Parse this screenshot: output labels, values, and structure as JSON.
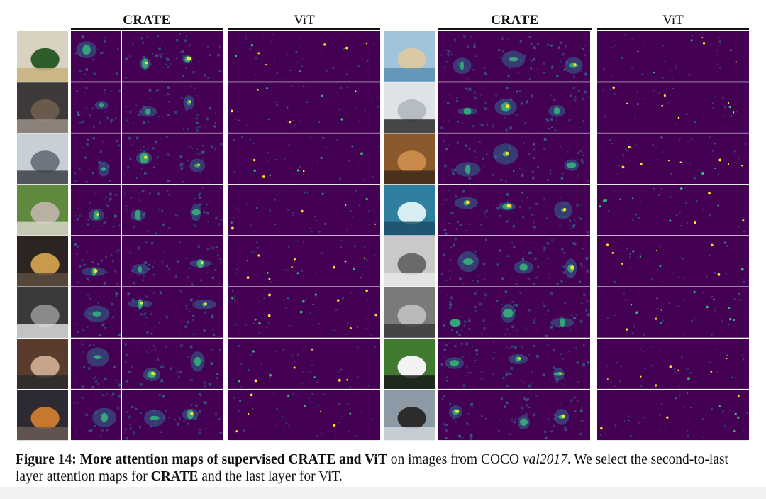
{
  "figure": {
    "headers": {
      "left_crate": "CRATE",
      "left_vit": "ViT",
      "right_crate": "CRATE",
      "right_vit": "ViT"
    },
    "rows_per_side": 8,
    "maps_per_group": 3,
    "colors": {
      "map_background": "#440154",
      "map_mid": "#31688e",
      "map_high": "#35b779",
      "map_peak": "#fde725"
    },
    "left_thumbnails": [
      {
        "name": "food-bowl-thumbnail",
        "colors": [
          "#d9d2c1",
          "#2f5d2a",
          "#c8b27c"
        ]
      },
      {
        "name": "kitchen-thumbnail",
        "colors": [
          "#3e3a3a",
          "#6a5a4c",
          "#9a8f86"
        ]
      },
      {
        "name": "parking-garage-thumbnail",
        "colors": [
          "#c9cfd6",
          "#6d7680",
          "#3a3f45"
        ]
      },
      {
        "name": "baseball-thumbnail",
        "colors": [
          "#5f8a3e",
          "#b8b0a2",
          "#d7d2c7"
        ]
      },
      {
        "name": "desk-lamp-thumbnail",
        "colors": [
          "#2b2420",
          "#c99a4b",
          "#5d4c3e"
        ]
      },
      {
        "name": "tennis-player-thumbnail",
        "colors": [
          "#3a3a3a",
          "#8a8a8a",
          "#dcdcdc"
        ]
      },
      {
        "name": "phone-hand-thumbnail",
        "colors": [
          "#5a3c2c",
          "#c8a58a",
          "#2a2a2a"
        ]
      },
      {
        "name": "pizza-thumbnail",
        "colors": [
          "#2d2a34",
          "#c7782f",
          "#6b5a52"
        ]
      }
    ],
    "right_thumbnails": [
      {
        "name": "beach-animals-thumbnail",
        "colors": [
          "#9fc4dc",
          "#d9c9a4",
          "#5a8fb3"
        ]
      },
      {
        "name": "tower-silhouette-thumbnail",
        "colors": [
          "#dfe3e8",
          "#b6bcc4",
          "#2a2a2a"
        ]
      },
      {
        "name": "dog-thumbnail",
        "colors": [
          "#8a5a2e",
          "#c98a4a",
          "#3e2a1a"
        ]
      },
      {
        "name": "surfer-thumbnail",
        "colors": [
          "#2e7fa0",
          "#d9eef2",
          "#1c4f6a"
        ]
      },
      {
        "name": "skier-thumbnail",
        "colors": [
          "#c9c9c9",
          "#6a6a6a",
          "#e8e8e8"
        ]
      },
      {
        "name": "group-photo-thumbnail",
        "colors": [
          "#7a7a7a",
          "#b9b9b9",
          "#3c3c3c"
        ]
      },
      {
        "name": "panda-thumbnail",
        "colors": [
          "#3f7a2e",
          "#f2f2f2",
          "#1a1a1a"
        ]
      },
      {
        "name": "windshield-thumbnail",
        "colors": [
          "#8c9aa6",
          "#2c2c2c",
          "#cfd6dc"
        ]
      }
    ]
  },
  "caption": {
    "label": "Figure 14:",
    "part1": " More attention maps of supervised ",
    "crate1": "CRATE",
    "part2": " and ViT",
    "part3": "  on images from COCO ",
    "italic": "val2017",
    "part4": ". We select the second-to-last layer attention maps for ",
    "crate2": "CRATE",
    "part5": " and the last layer for ViT."
  }
}
